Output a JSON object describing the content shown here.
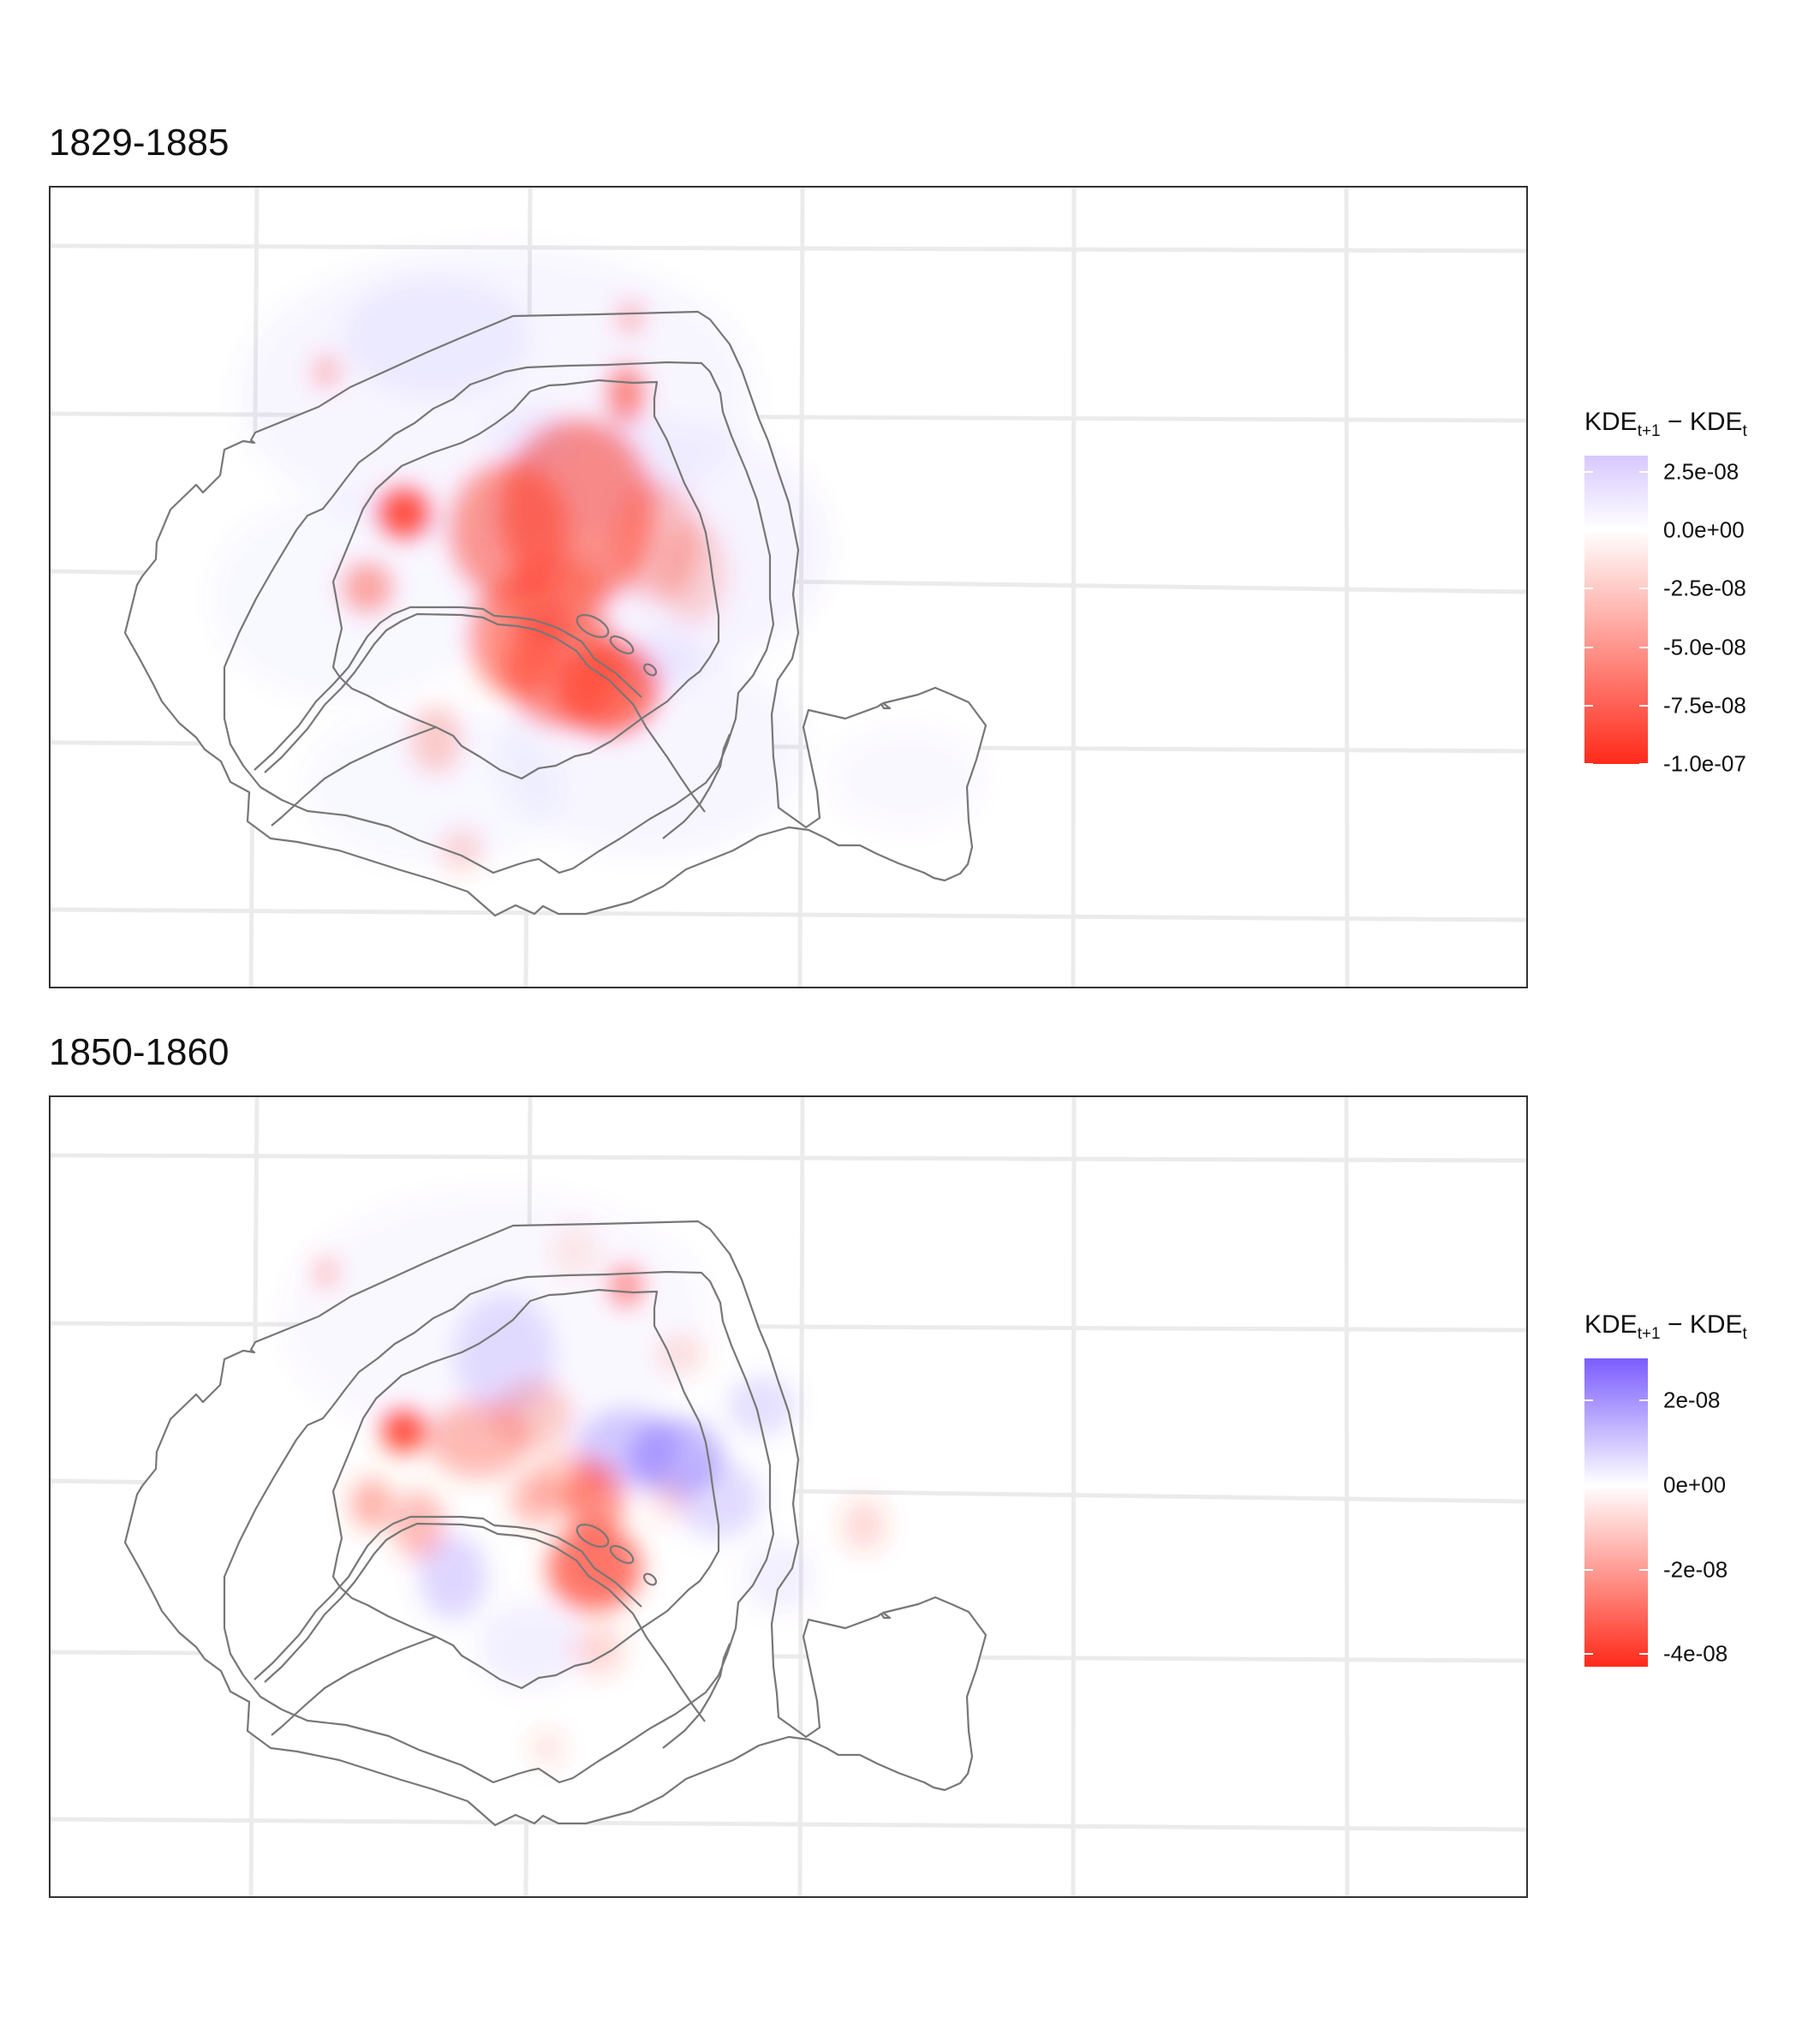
{
  "panels": [
    {
      "title": "1829-1885",
      "legend": {
        "title_main": "KDE",
        "title_sub1": "t+1",
        "title_minus": " − KDE",
        "title_sub2": "t",
        "labels": [
          "2.5e-08",
          "0.0e+00",
          "-2.5e-08",
          "-5.0e-08",
          "-7.5e-08",
          "-1.0e-07"
        ],
        "values": [
          2.5e-08,
          0,
          -2.5e-08,
          -5e-08,
          -7.5e-08,
          -1e-07
        ],
        "range": [
          -1e-07,
          3.2e-08
        ],
        "colors": {
          "high": "#d7c8ff",
          "mid": "#ffffff",
          "low": "#ff2a1a"
        }
      }
    },
    {
      "title": "1850-1860",
      "legend": {
        "title_main": "KDE",
        "title_sub1": "t+1",
        "title_minus": " − KDE",
        "title_sub2": "t",
        "labels": [
          "2e-08",
          "0e+00",
          "-2e-08",
          "-4e-08"
        ],
        "values": [
          2e-08,
          0,
          -2e-08,
          -4e-08
        ],
        "range": [
          -4.3e-08,
          3e-08
        ],
        "colors": {
          "high": "#7a5cff",
          "mid": "#ffffff",
          "low": "#ff2a1a"
        }
      }
    }
  ],
  "colors": {
    "outline": "#777777",
    "grid": "#ebebeb",
    "frame": "#333333",
    "negative": "#ff3b26",
    "positive": "#7b61ff"
  }
}
